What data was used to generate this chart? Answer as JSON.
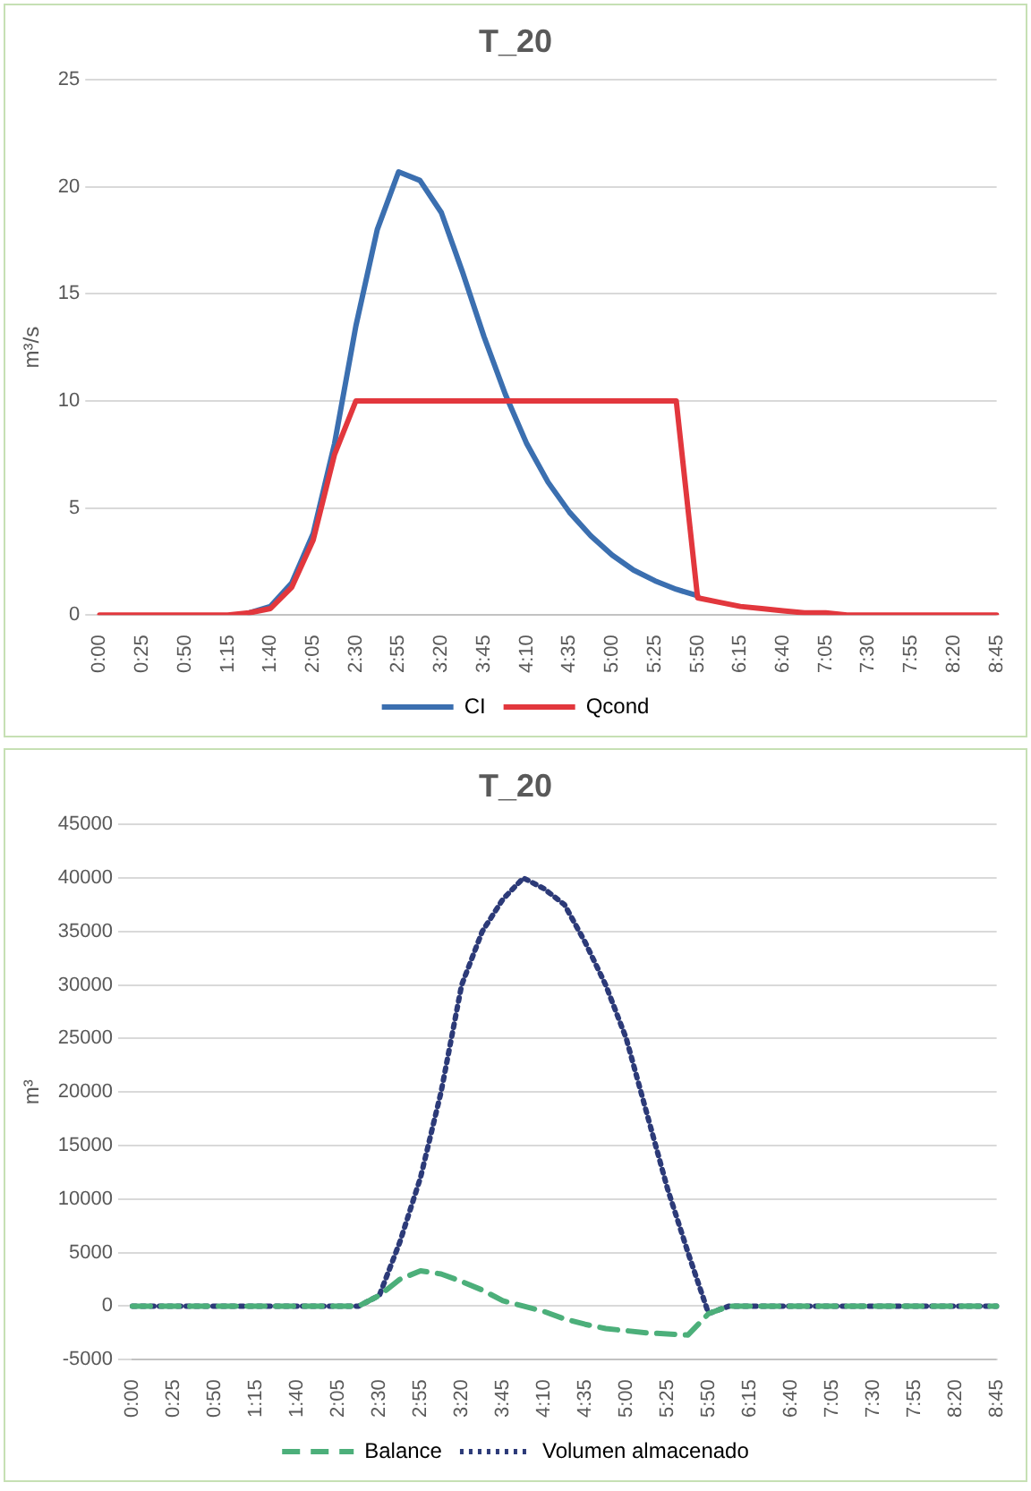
{
  "chart_data": [
    {
      "type": "line",
      "title": "T_20",
      "ylabel": "m³/s",
      "categories": [
        "0:00",
        null,
        "0:25",
        null,
        "0:50",
        null,
        "1:15",
        null,
        "1:40",
        null,
        "2:05",
        null,
        "2:30",
        null,
        "2:55",
        null,
        "3:20",
        null,
        "3:45",
        null,
        "4:10",
        null,
        "4:35",
        null,
        "5:00",
        null,
        "5:25",
        null,
        "5:50",
        null,
        "6:15",
        null,
        "6:40",
        null,
        "7:05",
        null,
        "7:30",
        null,
        "7:55",
        null,
        "8:20",
        null,
        "8:45"
      ],
      "series": [
        {
          "name": "CI",
          "color": "#3b6fb0",
          "values": [
            null,
            null,
            null,
            null,
            null,
            null,
            null,
            0.1,
            0.4,
            1.5,
            3.8,
            8,
            13.5,
            18,
            20.7,
            20.3,
            18.8,
            16,
            13,
            10.3,
            8,
            6.2,
            4.8,
            3.7,
            2.8,
            2.1,
            1.6,
            1.2,
            0.9,
            null,
            null,
            null,
            null,
            null,
            null,
            null,
            null,
            null,
            null,
            null,
            null,
            null,
            null
          ]
        },
        {
          "name": "Qcond",
          "color": "#e2373d",
          "values": [
            0,
            0,
            0,
            0,
            0,
            0,
            0,
            0.1,
            0.3,
            1.3,
            3.5,
            7.5,
            10,
            10,
            10,
            10,
            10,
            10,
            10,
            10,
            10,
            10,
            10,
            10,
            10,
            10,
            10,
            10,
            0.8,
            0.6,
            0.4,
            0.3,
            0.2,
            0.1,
            0.1,
            0,
            0,
            0,
            0,
            0,
            0,
            0,
            0
          ]
        }
      ],
      "ylim": [
        0,
        25
      ],
      "yticks": [
        0,
        5,
        10,
        15,
        20,
        25
      ],
      "grid": "y",
      "legend": "bottom",
      "marker": "none",
      "line_style": "solid"
    },
    {
      "type": "line",
      "title": "T_20",
      "ylabel": "m³",
      "categories": [
        "0:00",
        null,
        "0:25",
        null,
        "0:50",
        null,
        "1:15",
        null,
        "1:40",
        null,
        "2:05",
        null,
        "2:30",
        null,
        "2:55",
        null,
        "3:20",
        null,
        "3:45",
        null,
        "4:10",
        null,
        "4:35",
        null,
        "5:00",
        null,
        "5:25",
        null,
        "5:50",
        null,
        "6:15",
        null,
        "6:40",
        null,
        "7:05",
        null,
        "7:30",
        null,
        "7:55",
        null,
        "8:20",
        null,
        "8:45"
      ],
      "series": [
        {
          "name": "Balance",
          "color": "#4caf7a",
          "line_style": "dashed",
          "values": [
            0,
            0,
            0,
            0,
            0,
            0,
            0,
            0,
            0,
            0,
            0,
            0,
            1000,
            2500,
            3300,
            3000,
            2300,
            1500,
            500,
            0,
            -500,
            -1200,
            -1700,
            -2100,
            -2300,
            -2500,
            -2600,
            -2700,
            -700,
            0,
            0,
            0,
            0,
            0,
            0,
            0,
            0,
            0,
            0,
            0,
            0,
            0,
            0
          ]
        },
        {
          "name": "Volumen almacenado",
          "color": "#2c3a78",
          "line_style": "dotted",
          "values": [
            0,
            0,
            0,
            0,
            0,
            0,
            0,
            0,
            0,
            0,
            0,
            0,
            1000,
            6000,
            12000,
            20000,
            30000,
            35000,
            38000,
            40000,
            39000,
            37500,
            34000,
            30000,
            25000,
            18000,
            11000,
            5000,
            -700,
            0,
            0,
            0,
            0,
            0,
            0,
            0,
            0,
            0,
            0,
            0,
            0,
            0,
            0
          ]
        }
      ],
      "ylim": [
        -5000,
        45000
      ],
      "yticks": [
        -5000,
        0,
        5000,
        10000,
        15000,
        20000,
        25000,
        30000,
        35000,
        40000,
        45000
      ],
      "grid": "y",
      "legend": "bottom",
      "marker": "none"
    }
  ]
}
